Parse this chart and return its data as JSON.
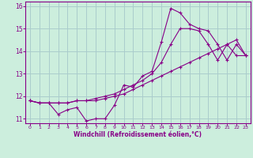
{
  "title": "",
  "xlabel": "Windchill (Refroidissement éolien,°C)",
  "ylabel": "",
  "xlim": [
    -0.5,
    23.5
  ],
  "ylim": [
    10.8,
    16.2
  ],
  "yticks": [
    11,
    12,
    13,
    14,
    15,
    16
  ],
  "ytick_labels": [
    "11",
    "12",
    "13",
    "14",
    "15",
    "16"
  ],
  "xticks": [
    0,
    1,
    2,
    3,
    4,
    5,
    6,
    7,
    8,
    9,
    10,
    11,
    12,
    13,
    14,
    15,
    16,
    17,
    18,
    19,
    20,
    21,
    22,
    23
  ],
  "line_color": "#880088",
  "background_color": "#cceedd",
  "grid_color": "#aacccc",
  "marker": "+",
  "lines": [
    {
      "x": [
        0,
        1,
        2,
        3,
        4,
        5,
        6,
        7,
        8,
        9,
        10,
        11,
        12,
        13,
        14,
        15,
        16,
        17,
        18,
        19,
        20,
        21,
        22,
        23
      ],
      "y": [
        11.8,
        11.7,
        11.7,
        11.2,
        11.4,
        11.5,
        10.9,
        11.0,
        11.0,
        11.6,
        12.5,
        12.4,
        12.9,
        13.1,
        14.4,
        15.9,
        15.7,
        15.2,
        15.0,
        14.9,
        14.3,
        13.6,
        14.3,
        13.8
      ]
    },
    {
      "x": [
        0,
        1,
        2,
        3,
        4,
        5,
        6,
        7,
        8,
        9,
        10,
        11,
        12,
        13,
        14,
        15,
        16,
        17,
        18,
        19,
        20,
        21,
        22,
        23
      ],
      "y": [
        11.8,
        11.7,
        11.7,
        11.7,
        11.7,
        11.8,
        11.8,
        11.8,
        11.9,
        12.0,
        12.1,
        12.3,
        12.5,
        12.7,
        12.9,
        13.1,
        13.3,
        13.5,
        13.7,
        13.9,
        14.1,
        14.3,
        14.5,
        13.8
      ]
    },
    {
      "x": [
        0,
        1,
        2,
        3,
        4,
        5,
        6,
        7,
        8,
        9,
        10,
        11,
        12,
        13,
        14,
        15,
        16,
        17,
        18,
        19,
        20,
        21,
        22,
        23
      ],
      "y": [
        11.8,
        11.7,
        11.7,
        11.7,
        11.7,
        11.8,
        11.8,
        11.9,
        12.0,
        12.1,
        12.3,
        12.5,
        12.7,
        13.0,
        13.5,
        14.3,
        15.0,
        15.0,
        14.9,
        14.3,
        13.6,
        14.3,
        13.8,
        13.8
      ]
    }
  ]
}
